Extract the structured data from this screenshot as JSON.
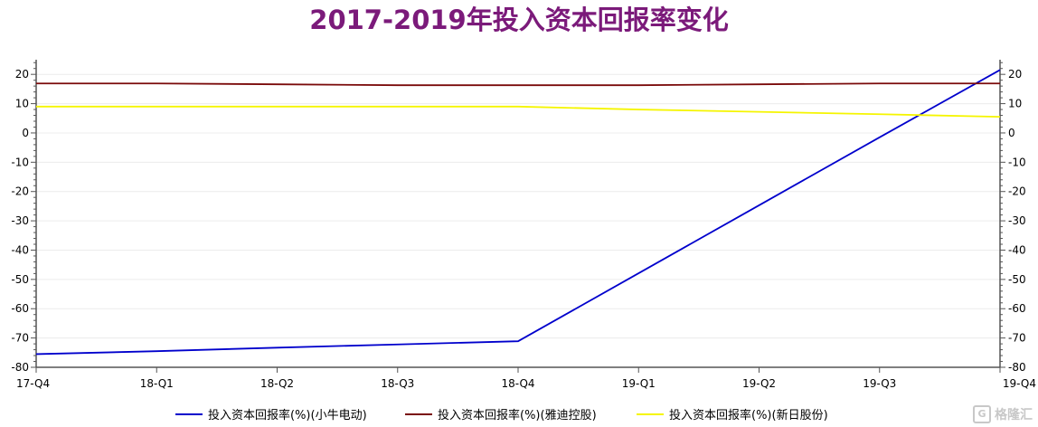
{
  "chart_data": {
    "type": "line",
    "title": "2017-2019年投入资本回报率变化",
    "categories": [
      "17-Q4",
      "18-Q1",
      "18-Q2",
      "18-Q3",
      "18-Q4",
      "19-Q1",
      "19-Q2",
      "19-Q3",
      "19-Q4"
    ],
    "ylim": [
      -80,
      25
    ],
    "yticks": [
      20,
      10,
      0,
      -10,
      -20,
      -30,
      -40,
      -50,
      -60,
      -70,
      -80
    ],
    "grid": true,
    "legend_position": "bottom",
    "series": [
      {
        "name": "投入资本回报率(%)(小牛电动)",
        "color": "#0000cc",
        "values": [
          -75.5,
          -74.5,
          -73.3,
          -72.2,
          -71.1,
          -47.9,
          -24.7,
          -1.5,
          21.5
        ]
      },
      {
        "name": "投入资本回报率(%)(雅迪控股)",
        "color": "#7a0a0a",
        "values": [
          16.9,
          16.9,
          16.6,
          16.3,
          16.3,
          16.3,
          16.6,
          16.9,
          16.9
        ]
      },
      {
        "name": "投入资本回报率(%)(新日股份)",
        "color": "#f5f500",
        "values": [
          9.0,
          9.0,
          9.0,
          9.0,
          9.0,
          8.0,
          7.2,
          6.4,
          5.5
        ]
      }
    ]
  },
  "watermark": {
    "icon_text": "G",
    "text": "格隆汇"
  }
}
